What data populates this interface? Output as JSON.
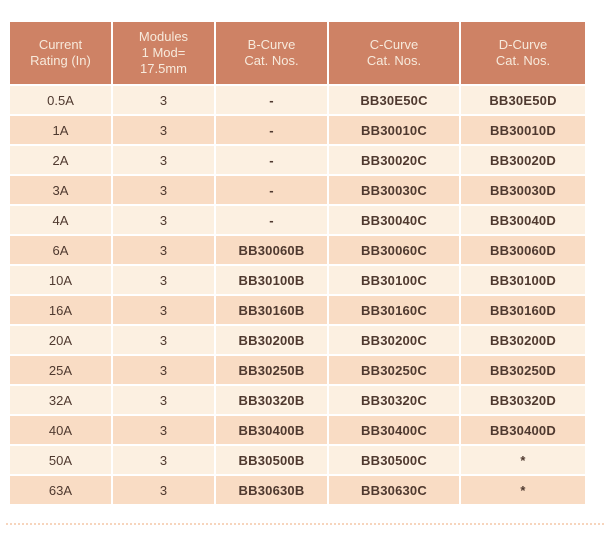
{
  "colors": {
    "header_bg": "#CE8265",
    "header_text": "#F7EADC",
    "row_light": "#FCF0E1",
    "row_dark": "#F9DCC4",
    "body_text": "#4F392F",
    "divider": "#FFFFFF",
    "dotted_line": "#F7D5BD"
  },
  "table": {
    "columns": [
      {
        "label": "Current\nRating (In)"
      },
      {
        "label": "Modules\n1 Mod=\n17.5mm"
      },
      {
        "label": "B-Curve\nCat. Nos."
      },
      {
        "label": "C-Curve\nCat. Nos."
      },
      {
        "label": "D-Curve\nCat. Nos."
      }
    ],
    "rows": [
      [
        "0.5A",
        "3",
        "-",
        "BB30E50C",
        "BB30E50D"
      ],
      [
        "1A",
        "3",
        "-",
        "BB30010C",
        "BB30010D"
      ],
      [
        "2A",
        "3",
        "-",
        "BB30020C",
        "BB30020D"
      ],
      [
        "3A",
        "3",
        "-",
        "BB30030C",
        "BB30030D"
      ],
      [
        "4A",
        "3",
        "-",
        "BB30040C",
        "BB30040D"
      ],
      [
        "6A",
        "3",
        "BB30060B",
        "BB30060C",
        "BB30060D"
      ],
      [
        "10A",
        "3",
        "BB30100B",
        "BB30100C",
        "BB30100D"
      ],
      [
        "16A",
        "3",
        "BB30160B",
        "BB30160C",
        "BB30160D"
      ],
      [
        "20A",
        "3",
        "BB30200B",
        "BB30200C",
        "BB30200D"
      ],
      [
        "25A",
        "3",
        "BB30250B",
        "BB30250C",
        "BB30250D"
      ],
      [
        "32A",
        "3",
        "BB30320B",
        "BB30320C",
        "BB30320D"
      ],
      [
        "40A",
        "3",
        "BB30400B",
        "BB30400C",
        "BB30400D"
      ],
      [
        "50A",
        "3",
        "BB30500B",
        "BB30500C",
        "*"
      ],
      [
        "63A",
        "3",
        "BB30630B",
        "BB30630C",
        "*"
      ]
    ]
  }
}
